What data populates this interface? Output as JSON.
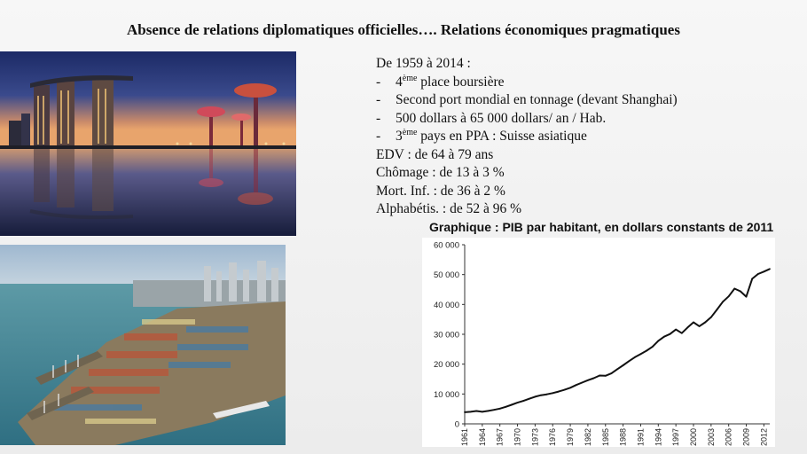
{
  "slide": {
    "title": "Absence de relations diplomatiques officielles…. Relations économiques pragmatiques"
  },
  "facts": {
    "intro": "De 1959 à 2014 :",
    "bullets": [
      {
        "dash": "-",
        "sup": "ème",
        "pre": "4",
        "text": " place boursière"
      },
      {
        "dash": "-",
        "sup": "",
        "pre": "",
        "text": "Second port mondial en tonnage (devant Shanghai)"
      },
      {
        "dash": "-",
        "sup": "",
        "pre": "",
        "text": "500 dollars à 65 000 dollars/ an / Hab."
      },
      {
        "dash": "-",
        "sup": "ème",
        "pre": "3",
        "text": " pays en PPA : Suisse asiatique"
      }
    ],
    "stats": [
      "EDV : de 64 à 79 ans",
      "Chômage : de 13 à 3 %",
      "Mort. Inf. : de 36 à 2 %",
      "Alphabétis. : de 52 à 96 %"
    ]
  },
  "photos": {
    "top": "marina-bay-sands-photo",
    "bottom": "container-port-photo"
  },
  "chart_data": {
    "type": "line",
    "title": "Graphique : PIB par habitant, en dollars constants de 2011",
    "xlabel": "",
    "ylabel": "",
    "ylim": [
      0,
      60000
    ],
    "yticks": [
      0,
      10000,
      20000,
      30000,
      40000,
      50000,
      60000
    ],
    "ytick_labels": [
      "0",
      "10 000",
      "20 000",
      "30 000",
      "40 000",
      "50 000",
      "60 000"
    ],
    "xticks": [
      1961,
      1964,
      1967,
      1970,
      1973,
      1976,
      1979,
      1982,
      1985,
      1988,
      1991,
      1994,
      1997,
      2000,
      2003,
      2006,
      2009,
      2012
    ],
    "xlim": [
      1961,
      2013
    ],
    "grid": false,
    "line_color": "#111111",
    "x": [
      1961,
      1962,
      1963,
      1964,
      1965,
      1966,
      1967,
      1968,
      1969,
      1970,
      1971,
      1972,
      1973,
      1974,
      1975,
      1976,
      1977,
      1978,
      1979,
      1980,
      1981,
      1982,
      1983,
      1984,
      1985,
      1986,
      1987,
      1988,
      1989,
      1990,
      1991,
      1992,
      1993,
      1994,
      1995,
      1996,
      1997,
      1998,
      1999,
      2000,
      2001,
      2002,
      2003,
      2004,
      2005,
      2006,
      2007,
      2008,
      2009,
      2010,
      2011,
      2012,
      2013
    ],
    "values": [
      3900,
      4050,
      4300,
      4050,
      4350,
      4700,
      5100,
      5700,
      6400,
      7100,
      7700,
      8400,
      9100,
      9600,
      9900,
      10300,
      10800,
      11400,
      12100,
      13000,
      13800,
      14600,
      15300,
      16200,
      16100,
      16900,
      18300,
      19600,
      21000,
      22300,
      23400,
      24500,
      25800,
      27800,
      29200,
      30100,
      31600,
      30400,
      32300,
      34000,
      32700,
      34000,
      35700,
      38300,
      40900,
      42700,
      45300,
      44400,
      42600,
      48600,
      50200,
      51000,
      51900
    ]
  }
}
